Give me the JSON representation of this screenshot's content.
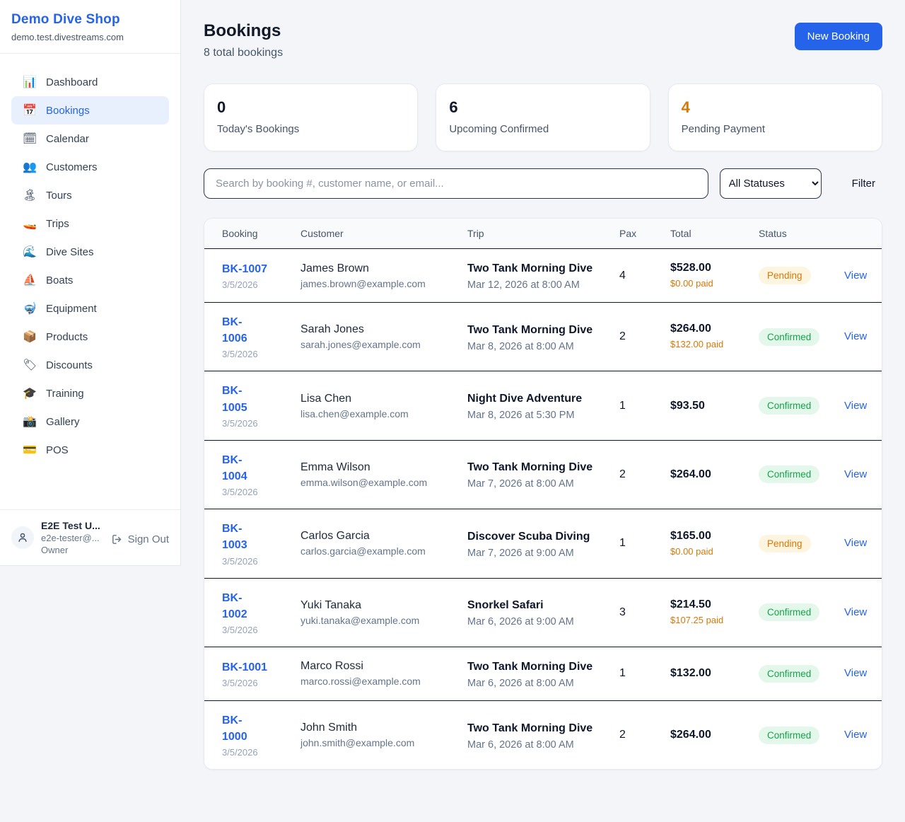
{
  "sidebar": {
    "brand": "Demo Dive Shop",
    "domain": "demo.test.divestreams.com",
    "items": [
      {
        "icon": "bar-chart-icon",
        "emoji": "📊",
        "label": "Dashboard",
        "active": false
      },
      {
        "icon": "calendar-date-icon",
        "emoji": "📅",
        "label": "Bookings",
        "active": true
      },
      {
        "icon": "spiral-calendar-icon",
        "emoji": "🗓",
        "label": "Calendar",
        "active": false
      },
      {
        "icon": "people-icon",
        "emoji": "👥",
        "label": "Customers",
        "active": false
      },
      {
        "icon": "island-icon",
        "emoji": "🏝",
        "label": "Tours",
        "active": false
      },
      {
        "icon": "speedboat-icon",
        "emoji": "🚤",
        "label": "Trips",
        "active": false
      },
      {
        "icon": "wave-icon",
        "emoji": "🌊",
        "label": "Dive Sites",
        "active": false
      },
      {
        "icon": "sailboat-icon",
        "emoji": "⛵",
        "label": "Boats",
        "active": false
      },
      {
        "icon": "diving-mask-icon",
        "emoji": "🤿",
        "label": "Equipment",
        "active": false
      },
      {
        "icon": "package-icon",
        "emoji": "📦",
        "label": "Products",
        "active": false
      },
      {
        "icon": "tag-icon",
        "emoji": "🏷",
        "label": "Discounts",
        "active": false
      },
      {
        "icon": "graduation-cap-icon",
        "emoji": "🎓",
        "label": "Training",
        "active": false
      },
      {
        "icon": "camera-flash-icon",
        "emoji": "📸",
        "label": "Gallery",
        "active": false
      },
      {
        "icon": "credit-card-icon",
        "emoji": "💳",
        "label": "POS",
        "active": false
      }
    ],
    "user": {
      "name": "E2E Test U...",
      "email": "e2e-tester@...",
      "role": "Owner",
      "sign_out_label": "Sign Out"
    }
  },
  "header": {
    "title": "Bookings",
    "subtitle": "8 total bookings",
    "new_booking_label": "New Booking"
  },
  "stats": [
    {
      "value": "0",
      "label": "Today's Bookings"
    },
    {
      "value": "6",
      "label": "Upcoming Confirmed"
    },
    {
      "value": "4",
      "label": "Pending Payment"
    }
  ],
  "filters": {
    "search_placeholder": "Search by booking #, customer name, or email...",
    "status_selected": "All Statuses",
    "filter_label": "Filter"
  },
  "table": {
    "columns": [
      "Booking",
      "Customer",
      "Trip",
      "Pax",
      "Total",
      "Status"
    ],
    "view_label": "View",
    "rows": [
      {
        "id": "BK-1007",
        "id_wrap": false,
        "date": "3/5/2026",
        "customer": "James Brown",
        "email": "james.brown@example.com",
        "trip": "Two Tank Morning Dive",
        "trip_time": "Mar 12, 2026 at 8:00 AM",
        "pax": "4",
        "total": "$528.00",
        "paid": "$0.00 paid",
        "status": "Pending"
      },
      {
        "id": "BK-1006",
        "id_wrap": true,
        "date": "3/5/2026",
        "customer": "Sarah Jones",
        "email": "sarah.jones@example.com",
        "trip": "Two Tank Morning Dive",
        "trip_time": "Mar 8, 2026 at 8:00 AM",
        "pax": "2",
        "total": "$264.00",
        "paid": "$132.00 paid",
        "status": "Confirmed"
      },
      {
        "id": "BK-1005",
        "id_wrap": true,
        "date": "3/5/2026",
        "customer": "Lisa Chen",
        "email": "lisa.chen@example.com",
        "trip": "Night Dive Adventure",
        "trip_time": "Mar 8, 2026 at 5:30 PM",
        "pax": "1",
        "total": "$93.50",
        "paid": null,
        "status": "Confirmed"
      },
      {
        "id": "BK-1004",
        "id_wrap": true,
        "date": "3/5/2026",
        "customer": "Emma Wilson",
        "email": "emma.wilson@example.com",
        "trip": "Two Tank Morning Dive",
        "trip_time": "Mar 7, 2026 at 8:00 AM",
        "pax": "2",
        "total": "$264.00",
        "paid": null,
        "status": "Confirmed"
      },
      {
        "id": "BK-1003",
        "id_wrap": true,
        "date": "3/5/2026",
        "customer": "Carlos Garcia",
        "email": "carlos.garcia@example.com",
        "trip": "Discover Scuba Diving",
        "trip_time": "Mar 7, 2026 at 9:00 AM",
        "pax": "1",
        "total": "$165.00",
        "paid": "$0.00 paid",
        "status": "Pending"
      },
      {
        "id": "BK-1002",
        "id_wrap": true,
        "date": "3/5/2026",
        "customer": "Yuki Tanaka",
        "email": "yuki.tanaka@example.com",
        "trip": "Snorkel Safari",
        "trip_time": "Mar 6, 2026 at 9:00 AM",
        "pax": "3",
        "total": "$214.50",
        "paid": "$107.25 paid",
        "status": "Confirmed"
      },
      {
        "id": "BK-1001",
        "id_wrap": false,
        "date": "3/5/2026",
        "customer": "Marco Rossi",
        "email": "marco.rossi@example.com",
        "trip": "Two Tank Morning Dive",
        "trip_time": "Mar 6, 2026 at 8:00 AM",
        "pax": "1",
        "total": "$132.00",
        "paid": null,
        "status": "Confirmed"
      },
      {
        "id": "BK-1000",
        "id_wrap": true,
        "date": "3/5/2026",
        "customer": "John Smith",
        "email": "john.smith@example.com",
        "trip": "Two Tank Morning Dive",
        "trip_time": "Mar 6, 2026 at 8:00 AM",
        "pax": "2",
        "total": "$264.00",
        "paid": null,
        "status": "Confirmed"
      }
    ]
  },
  "colors": {
    "accent_blue": "#2563eb",
    "pending_orange": "#d97706",
    "confirmed_green": "#16a34a",
    "dark_text": "#0f172a",
    "muted_text": "#64748b",
    "page_bg": "#f3f5f9"
  }
}
